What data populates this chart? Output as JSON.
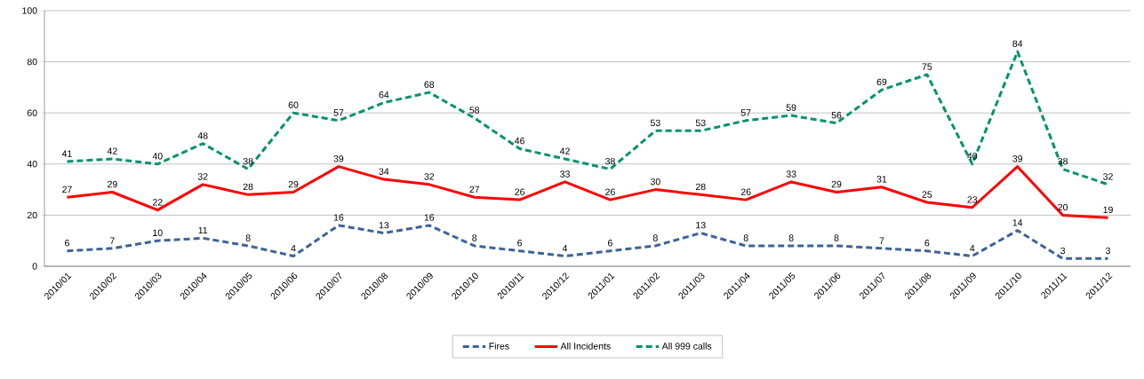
{
  "chart_data": {
    "type": "line",
    "categories": [
      "2010/01",
      "2010/02",
      "2010/03",
      "2010/04",
      "2010/05",
      "2010/06",
      "2010/07",
      "2010/08",
      "2010/09",
      "2010/10",
      "2010/11",
      "2010/12",
      "2011/01",
      "2011/02",
      "2011/03",
      "2011/04",
      "2011/05",
      "2011/06",
      "2011/07",
      "2011/08",
      "2011/09",
      "2011/10",
      "2011/11",
      "2011/12"
    ],
    "series": [
      {
        "name": "Fires",
        "color": "#3d6399",
        "line_style": "dashed",
        "values": [
          6,
          7,
          10,
          11,
          8,
          4,
          16,
          13,
          16,
          8,
          6,
          4,
          6,
          8,
          13,
          8,
          8,
          8,
          7,
          6,
          4,
          14,
          3,
          3
        ]
      },
      {
        "name": "All Incidents",
        "color": "#ff0000",
        "line_style": "solid",
        "values": [
          27,
          29,
          22,
          32,
          28,
          29,
          39,
          34,
          32,
          27,
          26,
          33,
          26,
          30,
          28,
          26,
          33,
          29,
          31,
          25,
          23,
          39,
          20,
          19
        ]
      },
      {
        "name": "All 999 calls",
        "color": "#00936e",
        "line_style": "dashed",
        "values": [
          41,
          42,
          40,
          48,
          38,
          60,
          57,
          64,
          68,
          58,
          46,
          42,
          38,
          53,
          53,
          57,
          59,
          56,
          69,
          75,
          40,
          84,
          38,
          32
        ]
      }
    ],
    "ylim": [
      0,
      100
    ],
    "yticks": [
      0,
      20,
      40,
      60,
      80,
      100
    ],
    "grid": "y",
    "legend": "bottom",
    "marker": "none",
    "data_labels": true
  }
}
